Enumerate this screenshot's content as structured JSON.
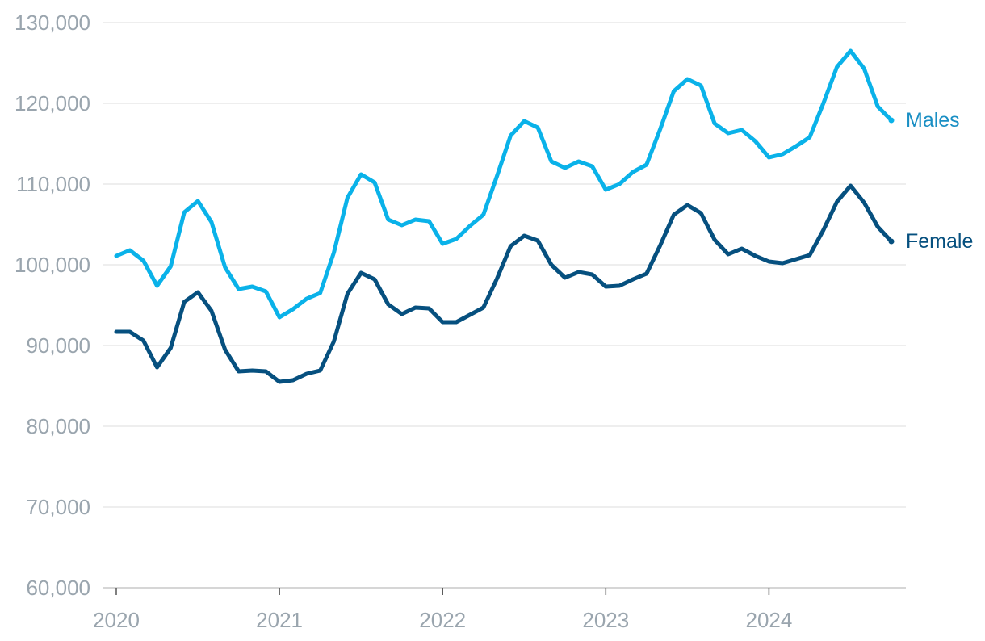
{
  "chart_data": {
    "type": "line",
    "title": "",
    "xlabel": "",
    "ylabel": "",
    "ylim": [
      60000,
      130000
    ],
    "y_ticks": [
      60000,
      70000,
      80000,
      90000,
      100000,
      110000,
      120000,
      130000
    ],
    "y_tick_labels": [
      "60,000",
      "70,000",
      "80,000",
      "90,000",
      "100,000",
      "110,000",
      "120,000",
      "130,000"
    ],
    "x_range": [
      "2020-01",
      "2024-10"
    ],
    "x_ticks": [
      "2020-01",
      "2021-01",
      "2022-01",
      "2023-01",
      "2024-01"
    ],
    "x_tick_labels": [
      "2020",
      "2021",
      "2022",
      "2023",
      "2024"
    ],
    "grid": "horizontal",
    "legend": "inline labels at line ends",
    "x": [
      "2020-01",
      "2020-02",
      "2020-03",
      "2020-04",
      "2020-05",
      "2020-06",
      "2020-07",
      "2020-08",
      "2020-09",
      "2020-10",
      "2020-11",
      "2020-12",
      "2021-01",
      "2021-02",
      "2021-03",
      "2021-04",
      "2021-05",
      "2021-06",
      "2021-07",
      "2021-08",
      "2021-09",
      "2021-10",
      "2021-11",
      "2021-12",
      "2022-01",
      "2022-02",
      "2022-03",
      "2022-04",
      "2022-05",
      "2022-06",
      "2022-07",
      "2022-08",
      "2022-09",
      "2022-10",
      "2022-11",
      "2022-12",
      "2023-01",
      "2023-02",
      "2023-03",
      "2023-04",
      "2023-05",
      "2023-06",
      "2023-07",
      "2023-08",
      "2023-09",
      "2023-10",
      "2023-11",
      "2023-12",
      "2024-01",
      "2024-02",
      "2024-03",
      "2024-04",
      "2024-05",
      "2024-06",
      "2024-07",
      "2024-08",
      "2024-09",
      "2024-10"
    ],
    "series": [
      {
        "name": "Males",
        "color": "#0ab2e9",
        "label_color": "#1a8fc4",
        "values": [
          101100,
          101800,
          100500,
          97400,
          99800,
          106500,
          107900,
          105300,
          99700,
          97000,
          97300,
          96700,
          93500,
          94500,
          95800,
          96500,
          101500,
          108300,
          111200,
          110200,
          105600,
          104900,
          105600,
          105400,
          102600,
          103200,
          104800,
          106200,
          111000,
          116000,
          117800,
          117000,
          112800,
          112000,
          112800,
          112200,
          109300,
          110000,
          111500,
          112400,
          116800,
          121500,
          123000,
          122200,
          117500,
          116300,
          116700,
          115300,
          113300,
          113700,
          114700,
          115800,
          120000,
          124500,
          126500,
          124300,
          119600,
          117900
        ]
      },
      {
        "name": "Female",
        "color": "#06507f",
        "label_color": "#06507f",
        "values": [
          91700,
          91700,
          90600,
          87300,
          89700,
          95400,
          96600,
          94300,
          89500,
          86800,
          86900,
          86800,
          85500,
          85700,
          86500,
          86900,
          90500,
          96400,
          99000,
          98200,
          95100,
          93900,
          94700,
          94600,
          92900,
          92900,
          93800,
          94700,
          98300,
          102300,
          103600,
          103000,
          100000,
          98400,
          99100,
          98800,
          97300,
          97400,
          98200,
          98900,
          102400,
          106200,
          107400,
          106400,
          103100,
          101300,
          102000,
          101100,
          100400,
          100200,
          100700,
          101200,
          104300,
          107800,
          109800,
          107700,
          104700,
          102900
        ]
      }
    ]
  }
}
